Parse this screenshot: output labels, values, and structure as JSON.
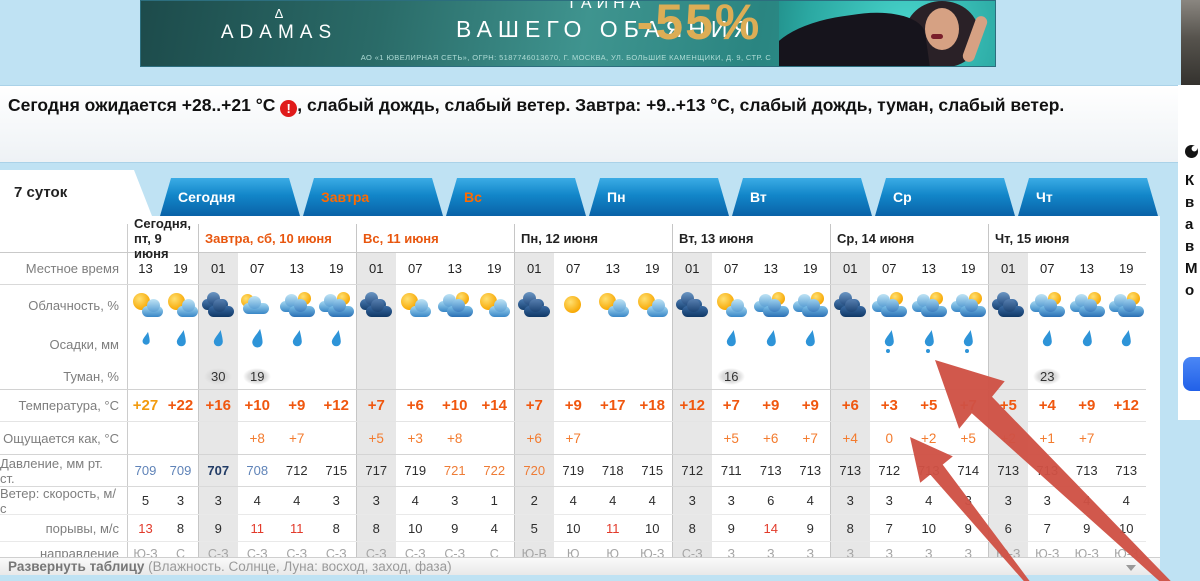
{
  "ad_banner": {
    "brand_triangle": "Δ",
    "brand": "ADAMAS",
    "title_line1": "ТАЙНА",
    "title_line2": "ВАШЕГО ОБАЯНИЯ",
    "discount": "-55%",
    "legal": "АО «1 ЮВЕЛИРНАЯ СЕТЬ», ОГРН: 5187746013670, Г. МОСКВА, УЛ. БОЛЬШИЕ КАМЕНЩИКИ, Д. 9, СТР. С"
  },
  "summary": {
    "part1": "Сегодня ожидается +28..+21 °C ",
    "warning_icon": "!",
    "part2": ", слабый дождь, слабый ветер. Завтра: +9..+13 °C, слабый дождь, туман, слабый ветер."
  },
  "tabs": [
    {
      "label": "7 суток",
      "active": true,
      "orange": false
    },
    {
      "label": "Сегодня",
      "active": false,
      "orange": false
    },
    {
      "label": "Завтра",
      "active": false,
      "orange": true
    },
    {
      "label": "Вс",
      "active": false,
      "orange": true
    },
    {
      "label": "Пн",
      "active": false,
      "orange": false
    },
    {
      "label": "Вт",
      "active": false,
      "orange": false
    },
    {
      "label": "Ср",
      "active": false,
      "orange": false
    },
    {
      "label": "Чт",
      "active": false,
      "orange": false
    }
  ],
  "help_label": "?",
  "table": {
    "days": [
      {
        "label": "Сегодня, пт, 9 июня",
        "cols": 2,
        "highlight": false
      },
      {
        "label": "Завтра, сб, 10 июня",
        "cols": 4,
        "highlight": true
      },
      {
        "label": "Вс, 11 июня",
        "cols": 4,
        "highlight": true
      },
      {
        "label": "Пн, 12 июня",
        "cols": 4,
        "highlight": false
      },
      {
        "label": "Вт, 13 июня",
        "cols": 4,
        "highlight": false
      },
      {
        "label": "Ср, 14 июня",
        "cols": 4,
        "highlight": false
      },
      {
        "label": "Чт, 15 июня",
        "cols": 4,
        "highlight": false
      }
    ],
    "time": {
      "label": "Местное время",
      "values": [
        "13",
        "19",
        "01",
        "07",
        "13",
        "19",
        "01",
        "07",
        "13",
        "19",
        "01",
        "07",
        "13",
        "19",
        "01",
        "07",
        "13",
        "19",
        "01",
        "07",
        "13",
        "19",
        "01",
        "07",
        "13",
        "19"
      ]
    },
    "cloudiness": {
      "label": "Облачность, %",
      "icons": [
        "sun-cloud",
        "sun-cloud",
        "dark-clouds",
        "cloud-sun",
        "clouds-sun",
        "clouds-sun",
        "dark-clouds",
        "sun-cloud",
        "clouds-sun",
        "sun-cloud",
        "dark-clouds",
        "sun",
        "sun-cloud",
        "sun-cloud",
        "dark-clouds",
        "sun-cloud",
        "clouds-sun",
        "clouds-sun",
        "dark-clouds",
        "clouds-sun",
        "clouds-sun",
        "clouds-sun",
        "dark-clouds",
        "clouds-sun",
        "clouds-sun",
        "clouds-sun"
      ]
    },
    "precipitation": {
      "label": "Осадки, мм",
      "icons": [
        "drop-sm",
        "drop",
        "drop",
        "drop-lg",
        "drop",
        "drop",
        "",
        "",
        "",
        "",
        "",
        "",
        "",
        "",
        "",
        "drop",
        "drop",
        "drop",
        "",
        "drizzle",
        "drizzle",
        "drizzle",
        "",
        "drop",
        "drop",
        "drop"
      ]
    },
    "fog": {
      "label": "Туман, %",
      "values": [
        "",
        "",
        "30",
        "19",
        "",
        "",
        "",
        "",
        "",
        "",
        "",
        "",
        "",
        "",
        "",
        "16",
        "",
        "",
        "",
        "",
        "",
        "",
        "",
        "23",
        "",
        ""
      ]
    },
    "temperature": {
      "label": "Температура, °C",
      "values": [
        "+27",
        "+22",
        "+16",
        "+10",
        "+9",
        "+12",
        "+7",
        "+6",
        "+10",
        "+14",
        "+7",
        "+9",
        "+17",
        "+18",
        "+12",
        "+7",
        "+9",
        "+9",
        "+6",
        "+3",
        "+5",
        "+7",
        "+5",
        "+4",
        "+9",
        "+12"
      ],
      "hot_indices": [
        0
      ]
    },
    "feels_like": {
      "label": "Ощущается как, °C",
      "values": [
        "",
        "",
        "",
        "+8",
        "+7",
        "",
        "+5",
        "+3",
        "+8",
        "",
        "+6",
        "+7",
        "",
        "",
        "",
        "+5",
        "+6",
        "+7",
        "+4",
        "0",
        "+2",
        "+5",
        "+2",
        "+1",
        "+7",
        ""
      ]
    },
    "pressure": {
      "label": "Давление, мм рт. ст.",
      "values": [
        "709",
        "709",
        "707",
        "708",
        "712",
        "715",
        "717",
        "719",
        "721",
        "722",
        "720",
        "719",
        "718",
        "715",
        "712",
        "711",
        "713",
        "713",
        "713",
        "712",
        "713",
        "714",
        "713",
        "713",
        "713",
        "713"
      ],
      "styles": [
        "low",
        "low",
        "lowbold",
        "low",
        "",
        "",
        "",
        "",
        "high",
        "high",
        "high",
        "",
        "",
        "",
        "",
        "",
        "",
        "",
        "",
        "",
        "",
        "",
        "",
        "",
        "",
        ""
      ]
    },
    "wind_speed": {
      "label": "Ветер: скорость, м/с",
      "values": [
        "5",
        "3",
        "3",
        "4",
        "4",
        "3",
        "3",
        "4",
        "3",
        "1",
        "2",
        "4",
        "4",
        "4",
        "3",
        "3",
        "6",
        "4",
        "3",
        "3",
        "4",
        "3",
        "3",
        "3",
        "4",
        "4"
      ]
    },
    "wind_gusts": {
      "label": "порывы, м/с",
      "values": [
        "13",
        "8",
        "9",
        "11",
        "11",
        "8",
        "8",
        "10",
        "9",
        "4",
        "5",
        "10",
        "11",
        "10",
        "8",
        "9",
        "14",
        "9",
        "8",
        "7",
        "10",
        "9",
        "6",
        "7",
        "9",
        "10"
      ],
      "red_indices": [
        0,
        3,
        4,
        12,
        16
      ]
    },
    "wind_dir": {
      "label": "направление",
      "values": [
        "Ю-З",
        "С",
        "С-З",
        "С-З",
        "С-З",
        "С-З",
        "С-З",
        "С-З",
        "С-З",
        "С",
        "Ю-В",
        "Ю",
        "Ю",
        "Ю-З",
        "С-З",
        "З",
        "З",
        "З",
        "З",
        "З",
        "З",
        "З",
        "Ю-З",
        "Ю-З",
        "Ю-З",
        "Ю-З"
      ]
    }
  },
  "expand_bar": {
    "bold": "Развернуть таблицу",
    "rest": " (Влажность. Солнце, Луна: восход, заход, фаза)"
  },
  "side_banner": {
    "letters": [
      "К",
      "в",
      "а",
      "в",
      "М",
      "о"
    ]
  },
  "colors": {
    "accent_orange": "#f0570f",
    "weekend_orange": "#e8560e",
    "tab_blue_top": "#3bace5",
    "tab_blue_bottom": "#0a62a7",
    "pressure_low": "#5f83b8",
    "pressure_high": "#ee7c36",
    "gust_red": "#e23a2a",
    "arrow_red": "#cf5145",
    "page_bg": "#bfe2f3"
  }
}
